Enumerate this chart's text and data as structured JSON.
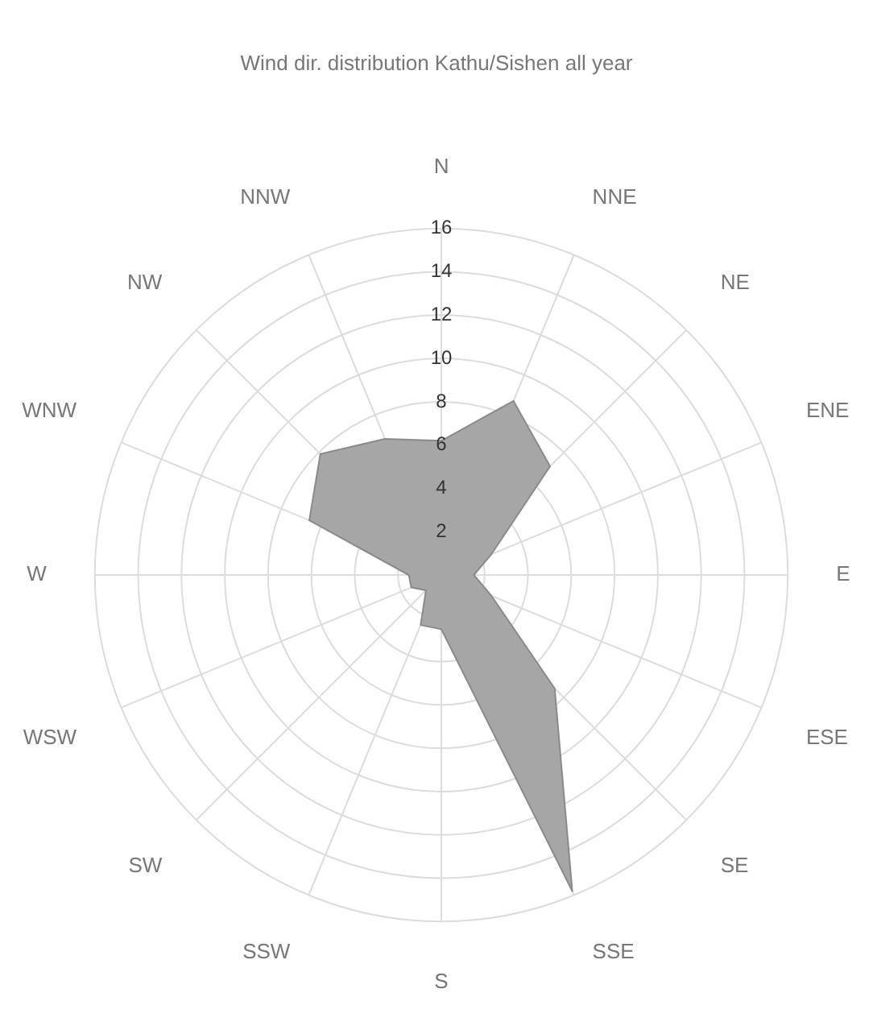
{
  "chart_data": {
    "type": "radar",
    "title": "Wind dir. distribution Kathu/Sishen all year",
    "categories": [
      "N",
      "NNE",
      "NE",
      "ENE",
      "E",
      "ESE",
      "SE",
      "SSE",
      "S",
      "SSW",
      "SW",
      "WSW",
      "W",
      "WNW",
      "NW",
      "NNW"
    ],
    "series": [
      {
        "color": "#a6a6a6",
        "values": [
          6.2,
          8.7,
          7.1,
          2.5,
          1.5,
          2.5,
          7.4,
          15.8,
          2.5,
          2.5,
          1,
          1.5,
          1.5,
          6.6,
          7.9,
          6.8
        ]
      }
    ],
    "ylim": [
      0,
      16
    ],
    "yticks": [
      2,
      4,
      6,
      8,
      10,
      12,
      14,
      16
    ],
    "grid": true,
    "marker": "none",
    "legend": false
  }
}
